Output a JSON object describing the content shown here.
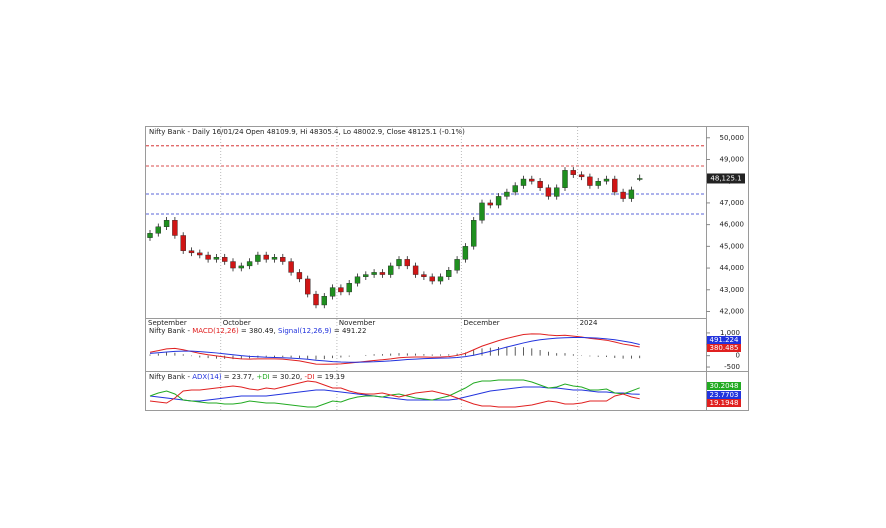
{
  "chart_data": [
    {
      "type": "candlestick",
      "title": "Nifty Bank - Daily 16/01/24 Open 48109.9, Hi 48305.4, Lo 48002.9, Close 48125.1 (-0.1%)",
      "up_color": "#1f8f1f",
      "down_color": "#d01515",
      "open": [
        45400,
        45600,
        45900,
        46200,
        45500,
        44800,
        44700,
        44600,
        44400,
        44500,
        44300,
        44000,
        44100,
        44300,
        44600,
        44400,
        44500,
        44300,
        43800,
        43500,
        42800,
        42300,
        42700,
        43100,
        42900,
        43300,
        43600,
        43700,
        43800,
        43700,
        44100,
        44400,
        44100,
        43700,
        43600,
        43400,
        43600,
        43900,
        44400,
        45000,
        46200,
        47000,
        46900,
        47300,
        47500,
        47800,
        48100,
        48000,
        47700,
        47300,
        47700,
        48500,
        48300,
        48200,
        47800,
        48000,
        48100,
        47500,
        47200,
        48109.9
      ],
      "high": [
        45750,
        46050,
        46350,
        46350,
        45650,
        44950,
        44850,
        44750,
        44650,
        44650,
        44450,
        44250,
        44450,
        44750,
        44750,
        44650,
        44650,
        44450,
        43950,
        43650,
        42950,
        42850,
        43250,
        43250,
        43450,
        43750,
        43850,
        43950,
        43950,
        44250,
        44550,
        44550,
        44250,
        43850,
        43750,
        43750,
        44050,
        44550,
        45150,
        46350,
        47150,
        47150,
        47450,
        47650,
        47950,
        48250,
        48250,
        48150,
        47850,
        47850,
        48650,
        48650,
        48450,
        48350,
        48150,
        48250,
        48250,
        47650,
        47750,
        48305.4
      ],
      "low": [
        45250,
        45450,
        45750,
        45350,
        44650,
        44550,
        44450,
        44250,
        44250,
        44150,
        43850,
        43850,
        43950,
        44150,
        44250,
        44250,
        44150,
        43650,
        43350,
        42650,
        42150,
        42150,
        42550,
        42750,
        42750,
        43150,
        43450,
        43550,
        43550,
        43550,
        43950,
        43950,
        43550,
        43450,
        43250,
        43250,
        43450,
        43750,
        44250,
        44850,
        46050,
        46750,
        46750,
        47150,
        47350,
        47650,
        47850,
        47550,
        47150,
        47150,
        47550,
        48150,
        48050,
        47650,
        47650,
        47850,
        47350,
        47050,
        47050,
        48002.9
      ],
      "close": [
        45600,
        45900,
        46200,
        45500,
        44800,
        44700,
        44600,
        44400,
        44500,
        44300,
        44000,
        44100,
        44300,
        44600,
        44400,
        44500,
        44300,
        43800,
        43500,
        42800,
        42300,
        42700,
        43100,
        42900,
        43300,
        43600,
        43700,
        43800,
        43700,
        44100,
        44400,
        44100,
        43700,
        43600,
        43400,
        43600,
        43900,
        44400,
        45000,
        46200,
        47000,
        46900,
        47300,
        47500,
        47800,
        48100,
        48000,
        47700,
        47300,
        47700,
        48500,
        48300,
        48200,
        47800,
        48000,
        48100,
        47500,
        47200,
        47600,
        48125.1
      ],
      "ylim": [
        41700,
        50450
      ],
      "yticks": [
        {
          "value": 42000,
          "label": "42,000"
        },
        {
          "value": 43000,
          "label": "43,000"
        },
        {
          "value": 44000,
          "label": "44,000"
        },
        {
          "value": 45000,
          "label": "45,000"
        },
        {
          "value": 46000,
          "label": "46,000"
        },
        {
          "value": 47000,
          "label": "47,000"
        },
        {
          "value": 48000,
          "label": "48,000"
        },
        {
          "value": 49000,
          "label": "49,000"
        },
        {
          "value": 50000,
          "label": "50,000"
        }
      ],
      "levels": [
        {
          "value": 49630,
          "color": "#d01515"
        },
        {
          "value": 48700,
          "color": "#d01515"
        },
        {
          "value": 47410,
          "color": "#2233cc"
        },
        {
          "value": 46490,
          "color": "#2233cc"
        }
      ],
      "last_price": {
        "value": 48125.1,
        "label": "48,125.1"
      },
      "month_labels": [
        {
          "index": 0,
          "label": "September"
        },
        {
          "index": 9,
          "label": "October"
        },
        {
          "index": 23,
          "label": "November"
        },
        {
          "index": 38,
          "label": "December"
        },
        {
          "index": 52,
          "label": "2024"
        }
      ]
    },
    {
      "type": "macd",
      "prefix": "Nifty Bank - ",
      "series": [
        {
          "name": "MACD(12,26)",
          "legend_suffix": " = 380.49, ",
          "color": "#e02020",
          "last_value": 380.485,
          "values": [
            150,
            220,
            300,
            320,
            260,
            180,
            100,
            40,
            -10,
            -60,
            -110,
            -140,
            -150,
            -140,
            -140,
            -140,
            -150,
            -190,
            -230,
            -300,
            -370,
            -380,
            -370,
            -360,
            -330,
            -290,
            -250,
            -210,
            -180,
            -140,
            -90,
            -70,
            -60,
            -60,
            -70,
            -60,
            -40,
            10,
            100,
            260,
            420,
            540,
            660,
            760,
            850,
            930,
            960,
            950,
            910,
            880,
            900,
            860,
            820,
            760,
            720,
            680,
            600,
            510,
            450,
            380.49
          ]
        },
        {
          "name": "Signal(12,26,9)",
          "legend_suffix": " = 491.22",
          "color": "#2233dd",
          "last_value": 491.224,
          "values": [
            100,
            130,
            160,
            190,
            200,
            200,
            180,
            150,
            120,
            80,
            40,
            0,
            -30,
            -50,
            -70,
            -80,
            -90,
            -110,
            -130,
            -160,
            -200,
            -230,
            -260,
            -280,
            -290,
            -290,
            -280,
            -270,
            -250,
            -230,
            -200,
            -170,
            -150,
            -130,
            -120,
            -110,
            -100,
            -80,
            -40,
            20,
            100,
            190,
            280,
            380,
            470,
            560,
            640,
            700,
            740,
            770,
            790,
            800,
            800,
            790,
            770,
            740,
            700,
            640,
            580,
            491.22
          ]
        }
      ],
      "histogram": {
        "color": "#333333",
        "values": [
          50,
          90,
          140,
          130,
          60,
          -20,
          -80,
          -110,
          -130,
          -140,
          -150,
          -140,
          -120,
          -90,
          -70,
          -60,
          -60,
          -80,
          -100,
          -140,
          -170,
          -150,
          -110,
          -80,
          -40,
          0,
          30,
          60,
          70,
          90,
          110,
          100,
          90,
          70,
          50,
          50,
          60,
          90,
          140,
          240,
          320,
          350,
          380,
          380,
          380,
          370,
          320,
          250,
          170,
          110,
          110,
          60,
          20,
          -30,
          -50,
          -60,
          -100,
          -130,
          -130,
          -110.73
        ]
      },
      "ylim": [
        -630,
        1260
      ],
      "yticks": [
        {
          "value": 1000,
          "label": "1,000"
        },
        500,
        0,
        -500
      ]
    },
    {
      "type": "adx",
      "prefix": "Nifty Bank - ",
      "series": [
        {
          "name": "ADX(14)",
          "legend_suffix": " = 23.77, ",
          "color": "#2233dd",
          "last_value": 23.7703,
          "values": [
            22,
            21,
            20,
            19,
            18,
            17,
            17,
            18,
            19,
            20,
            21,
            22,
            22,
            22,
            22,
            23,
            24,
            25,
            26,
            27,
            28,
            28,
            27,
            26,
            25,
            24,
            23,
            22,
            21,
            20,
            19,
            18,
            18,
            18,
            18,
            18,
            18,
            19,
            21,
            23,
            25,
            27,
            28,
            29,
            30,
            31,
            31,
            31,
            30,
            30,
            29,
            28,
            28,
            27,
            26,
            26,
            25,
            25,
            24,
            23.77
          ]
        },
        {
          "name": "+DI",
          "legend_suffix": " = 30.20, ",
          "color": "#22aa22",
          "last_value": 30.2048,
          "values": [
            22,
            25,
            27,
            24,
            18,
            17,
            16,
            15,
            15,
            14,
            14,
            15,
            17,
            16,
            15,
            15,
            14,
            13,
            12,
            11,
            11,
            14,
            17,
            16,
            19,
            21,
            22,
            22,
            21,
            23,
            24,
            22,
            20,
            19,
            18,
            20,
            22,
            26,
            30,
            35,
            37,
            37,
            38,
            38,
            38,
            38,
            36,
            33,
            30,
            31,
            34,
            32,
            31,
            28,
            28,
            29,
            25,
            24,
            27,
            30.2
          ]
        },
        {
          "name": "-DI",
          "legend_suffix": " = 19.19",
          "color": "#e02020",
          "last_value": 19.1948,
          "values": [
            17,
            16,
            15,
            20,
            27,
            28,
            28,
            29,
            30,
            31,
            32,
            31,
            29,
            28,
            30,
            29,
            31,
            33,
            35,
            37,
            36,
            33,
            30,
            30,
            27,
            25,
            24,
            24,
            25,
            23,
            21,
            23,
            25,
            26,
            27,
            25,
            23,
            20,
            17,
            14,
            12,
            12,
            11,
            11,
            11,
            12,
            13,
            15,
            17,
            16,
            14,
            14,
            15,
            17,
            17,
            17,
            22,
            24,
            21,
            19.19
          ]
        }
      ],
      "ylim": [
        10,
        42
      ]
    }
  ]
}
